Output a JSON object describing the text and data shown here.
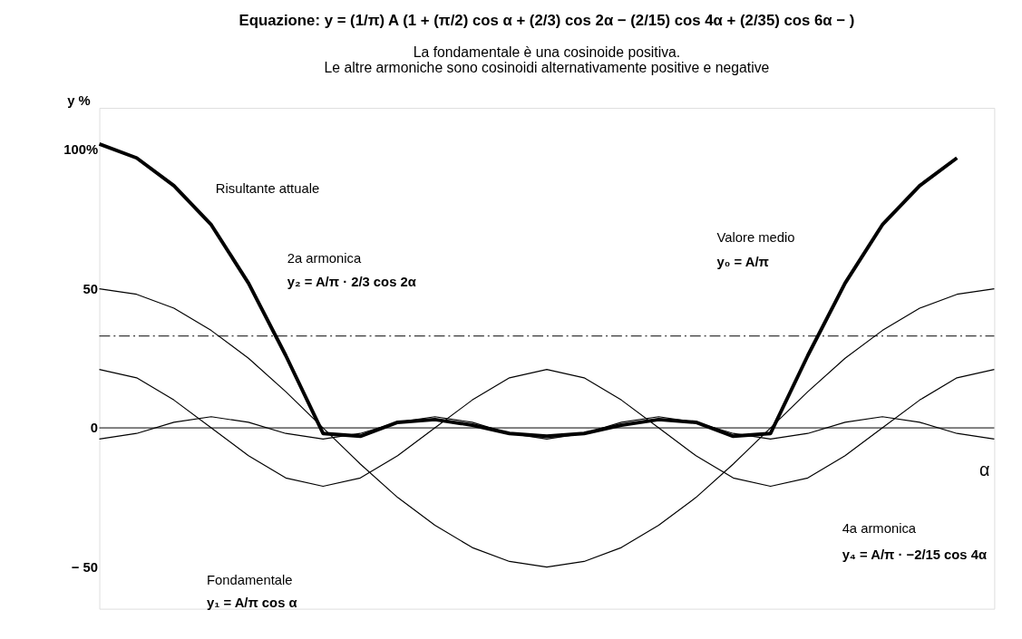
{
  "chart_data": {
    "type": "line",
    "title": "Equazione:    y = (1/π) A (1 + (π/2) cos α + (2/3) cos 2α − (2/15) cos 4α + (2/35) cos 6α −    )",
    "subtitle": [
      "La fondamentale è una cosinoide positiva.",
      "Le altre armoniche sono cosinoidi alternativamente positive e negative"
    ],
    "ylabel": "y %",
    "xlabel": "α",
    "categories": [
      null,
      null,
      null,
      null,
      null,
      null,
      null,
      null,
      null,
      null,
      null,
      null,
      null,
      null,
      null,
      null,
      null,
      null,
      null,
      null,
      null,
      null,
      null,
      null,
      null
    ],
    "series": [
      {
        "color": "#000000",
        "values": [
          102,
          97,
          87,
          73,
          52,
          26,
          -2,
          -3,
          2,
          3,
          1,
          -2,
          -3,
          -2,
          1,
          3,
          2,
          -3,
          -2,
          26,
          52,
          73,
          87,
          97,
          null
        ]
      },
      {
        "color": "#000000",
        "values": [
          50,
          48,
          43,
          35,
          25,
          13,
          0,
          -13,
          -25,
          -35,
          -43,
          -48,
          -50,
          -48,
          -43,
          -35,
          -25,
          -13,
          0,
          13,
          25,
          35,
          43,
          48,
          50
        ]
      },
      {
        "color": "#000000",
        "values": [
          21,
          18,
          10,
          0,
          -10,
          -18,
          -21,
          -18,
          -10,
          0,
          10,
          18,
          21,
          18,
          10,
          0,
          -10,
          -18,
          -21,
          -18,
          -10,
          0,
          10,
          18,
          21
        ]
      },
      {
        "color": "#000000",
        "values": [
          -4,
          -2,
          2,
          4,
          2,
          -2,
          -4,
          -2,
          2,
          4,
          2,
          -2,
          -4,
          -2,
          2,
          4,
          2,
          -2,
          -4,
          -2,
          2,
          4,
          2,
          -2,
          -4
        ]
      }
    ],
    "ylim": [
      -65,
      115
    ],
    "yticks": [
      {
        "value": 100,
        "label": "100%"
      },
      50,
      0,
      {
        "value": -50,
        "label": "− 50"
      }
    ],
    "ref_lines": [
      {
        "axis": "y",
        "value": 0,
        "color": "#000000"
      },
      {
        "axis": "y",
        "value": 33,
        "color": "#000000",
        "line_style": "dashed"
      }
    ],
    "annotations": [
      "Risultante attuale",
      "2a armonica",
      "y₂ = A/π · 2/3 cos 2α",
      "Valore medio",
      "y₀ = A/π",
      "Fondamentale",
      "y₁ = A/π cos α",
      "4a armonica",
      "y₄ = A/π · −2/15 cos 4α"
    ],
    "grid": false,
    "marker": "none",
    "line_style": "solid"
  }
}
